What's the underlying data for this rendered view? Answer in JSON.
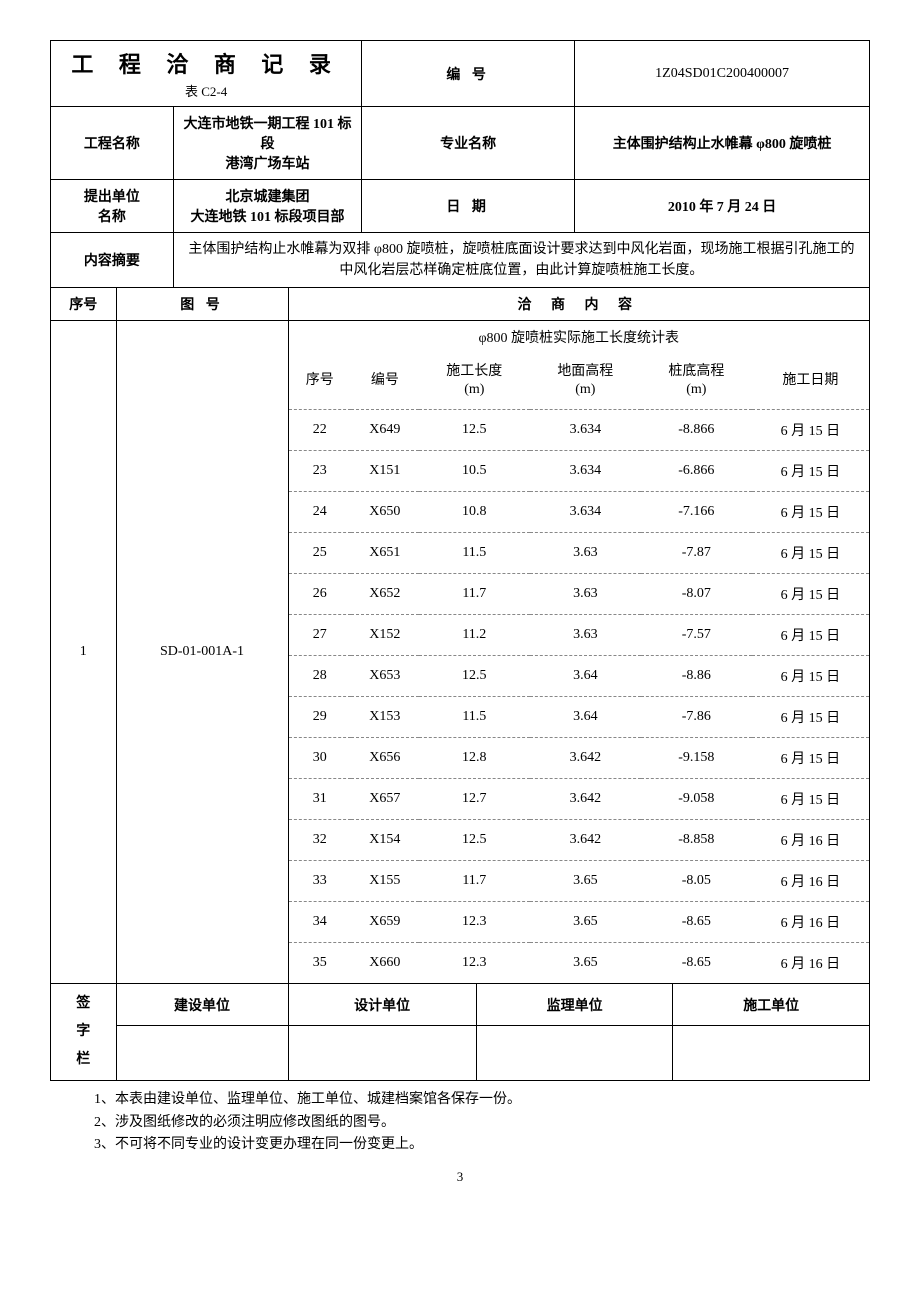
{
  "header": {
    "title": "工 程 洽 商 记 录",
    "subtitle": "表 C2-4",
    "number_label": "编  号",
    "number_value": "1Z04SD01C200400007"
  },
  "info": {
    "project_name_label": "工程名称",
    "project_name_value": "大连市地铁一期工程 101 标段\n港湾广场车站",
    "specialty_label": "专业名称",
    "specialty_value": "主体围护结构止水帷幕 φ800 旋喷桩",
    "proposer_label": "提出单位\n名称",
    "proposer_value": "北京城建集团\n大连地铁 101 标段项目部",
    "date_label": "日  期",
    "date_value": "2010 年 7 月 24 日",
    "summary_label": "内容摘要",
    "summary_value": "主体围护结构止水帷幕为双排 φ800 旋喷桩，旋喷桩底面设计要求达到中风化岩面，现场施工根据引孔施工的中风化岩层芯样确定桩底位置，由此计算旋喷桩施工长度。"
  },
  "table_headers": {
    "seq": "序号",
    "drawing_no": "图  号",
    "content": "洽  商  内  容"
  },
  "content_row": {
    "seq": "1",
    "drawing_no": "SD-01-001A-1"
  },
  "inner": {
    "title": "φ800 旋喷桩实际施工长度统计表",
    "columns": [
      "序号",
      "编号",
      "施工长度\n(m)",
      "地面高程\n(m)",
      "桩底高程\n(m)",
      "施工日期"
    ],
    "rows": [
      [
        "22",
        "X649",
        "12.5",
        "3.634",
        "-8.866",
        "6 月 15 日"
      ],
      [
        "23",
        "X151",
        "10.5",
        "3.634",
        "-6.866",
        "6 月 15 日"
      ],
      [
        "24",
        "X650",
        "10.8",
        "3.634",
        "-7.166",
        "6 月 15 日"
      ],
      [
        "25",
        "X651",
        "11.5",
        "3.63",
        "-7.87",
        "6 月 15 日"
      ],
      [
        "26",
        "X652",
        "11.7",
        "3.63",
        "-8.07",
        "6 月 15 日"
      ],
      [
        "27",
        "X152",
        "11.2",
        "3.63",
        "-7.57",
        "6 月 15 日"
      ],
      [
        "28",
        "X653",
        "12.5",
        "3.64",
        "-8.86",
        "6 月 15 日"
      ],
      [
        "29",
        "X153",
        "11.5",
        "3.64",
        "-7.86",
        "6 月 15 日"
      ],
      [
        "30",
        "X656",
        "12.8",
        "3.642",
        "-9.158",
        "6 月 15 日"
      ],
      [
        "31",
        "X657",
        "12.7",
        "3.642",
        "-9.058",
        "6 月 15 日"
      ],
      [
        "32",
        "X154",
        "12.5",
        "3.642",
        "-8.858",
        "6 月 16 日"
      ],
      [
        "33",
        "X155",
        "11.7",
        "3.65",
        "-8.05",
        "6 月 16 日"
      ],
      [
        "34",
        "X659",
        "12.3",
        "3.65",
        "-8.65",
        "6 月 16 日"
      ],
      [
        "35",
        "X660",
        "12.3",
        "3.65",
        "-8.65",
        "6 月 16 日"
      ]
    ]
  },
  "signatures": {
    "label": "签\n字\n栏",
    "cols": [
      "建设单位",
      "设计单位",
      "监理单位",
      "施工单位"
    ]
  },
  "notes": [
    "1、本表由建设单位、监理单位、施工单位、城建档案馆各保存一份。",
    "2、涉及图纸修改的必须注明应修改图纸的图号。",
    "3、不可将不同专业的设计变更办理在同一份变更上。"
  ],
  "page_number": "3",
  "layout": {
    "col_widths_pct": [
      8,
      7,
      14,
      9,
      14,
      12,
      12,
      12,
      12
    ],
    "border_color": "#000000",
    "dashed_color": "#888888",
    "background": "#ffffff",
    "font_family": "SimSun"
  }
}
